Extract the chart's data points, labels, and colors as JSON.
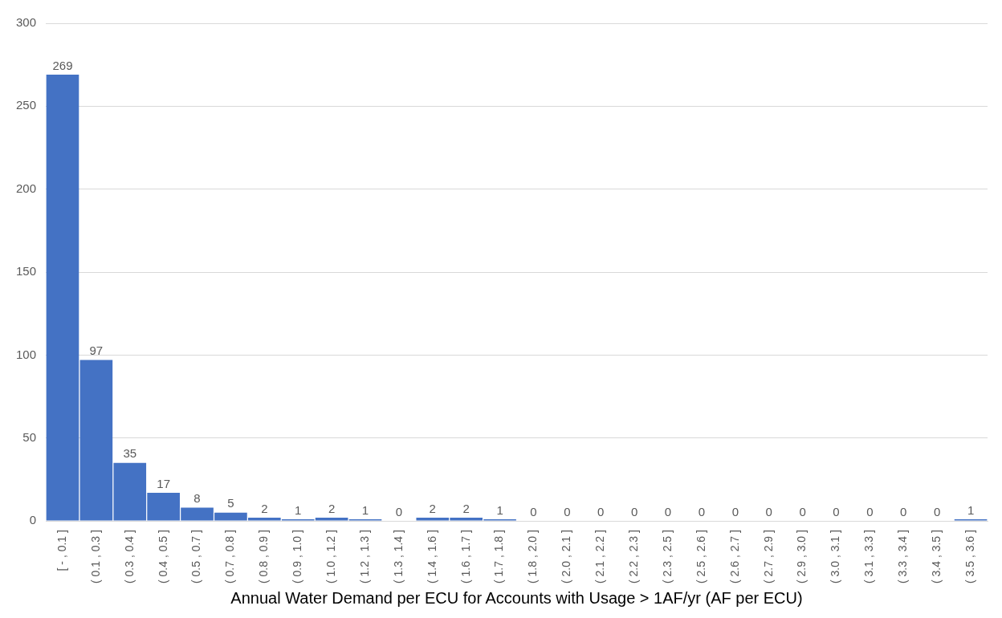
{
  "chart_data": {
    "type": "bar",
    "xlabel": "Annual Water Demand per ECU for Accounts with Usage > 1AF/yr (AF per ECU)",
    "categories": [
      "[ - , 0.1 ]",
      "( 0.1 , 0.3 ]",
      "( 0.3 , 0.4 ]",
      "( 0.4 , 0.5 ]",
      "( 0.5 , 0.7 ]",
      "( 0.7 , 0.8 ]",
      "( 0.8 , 0.9 ]",
      "( 0.9 , 1.0 ]",
      "( 1.0 , 1.2 ]",
      "( 1.2 , 1.3 ]",
      "( 1.3 , 1.4 ]",
      "( 1.4 , 1.6 ]",
      "( 1.6 , 1.7 ]",
      "( 1.7 , 1.8 ]",
      "( 1.8 , 2.0 ]",
      "( 2.0 , 2.1 ]",
      "( 2.1 , 2.2 ]",
      "( 2.2 , 2.3 ]",
      "( 2.3 , 2.5 ]",
      "( 2.5 , 2.6 ]",
      "( 2.6 , 2.7 ]",
      "( 2.7 , 2.9 ]",
      "( 2.9 , 3.0 ]",
      "( 3.0 , 3.1 ]",
      "( 3.1 , 3.3 ]",
      "( 3.3 , 3.4 ]",
      "( 3.4 , 3.5 ]",
      "( 3.5 , 3.6 ]"
    ],
    "values": [
      269,
      97,
      35,
      17,
      8,
      5,
      2,
      1,
      2,
      1,
      0,
      2,
      2,
      1,
      0,
      0,
      0,
      0,
      0,
      0,
      0,
      0,
      0,
      0,
      0,
      0,
      0,
      1
    ],
    "color": "#4472c4",
    "ylim": [
      0,
      300
    ],
    "yticks": [
      0,
      50,
      100,
      150,
      200,
      250,
      300
    ],
    "grid": "y",
    "data_labels": true
  }
}
